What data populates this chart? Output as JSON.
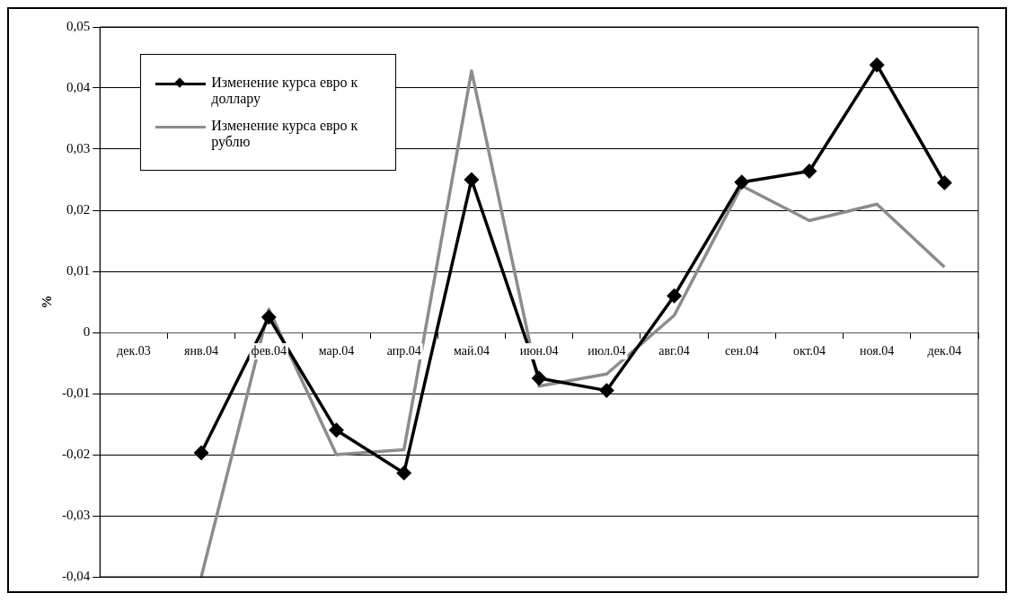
{
  "chart_data": {
    "type": "line",
    "ylabel": "%",
    "categories": [
      "дек.03",
      "янв.04",
      "фев.04",
      "мар.04",
      "апр.04",
      "май.04",
      "июн.04",
      "июл.04",
      "авг.04",
      "сен.04",
      "окт.04",
      "ноя.04",
      "дек.04"
    ],
    "series": [
      {
        "name": "Изменение курса евро к доллару",
        "color": "#000000",
        "marker": "diamond",
        "values": [
          null,
          -0.0197,
          0.0025,
          -0.016,
          -0.023,
          0.025,
          -0.0075,
          -0.0095,
          0.006,
          0.0246,
          0.0264,
          0.0438,
          0.0245
        ]
      },
      {
        "name": "Изменение курса евро к рублю",
        "color": "#8c8c8c",
        "marker": "none",
        "values": [
          null,
          -0.04,
          0.0038,
          -0.02,
          -0.0192,
          0.0428,
          -0.0088,
          -0.0068,
          0.0028,
          0.024,
          0.0183,
          0.021,
          0.0107
        ]
      }
    ],
    "ylim": [
      -0.04,
      0.05
    ],
    "yticks": [
      {
        "value": -0.04,
        "label": "-0,04"
      },
      {
        "value": -0.03,
        "label": "-0,03"
      },
      {
        "value": -0.02,
        "label": "-0,02"
      },
      {
        "value": -0.01,
        "label": "-0,01"
      },
      {
        "value": 0,
        "label": "0"
      },
      {
        "value": 0.01,
        "label": "0,01"
      },
      {
        "value": 0.02,
        "label": "0,02"
      },
      {
        "value": 0.03,
        "label": "0,03"
      },
      {
        "value": 0.04,
        "label": "0,04"
      },
      {
        "value": 0.05,
        "label": "0,05"
      }
    ],
    "grid": "y",
    "legend": "top left"
  }
}
